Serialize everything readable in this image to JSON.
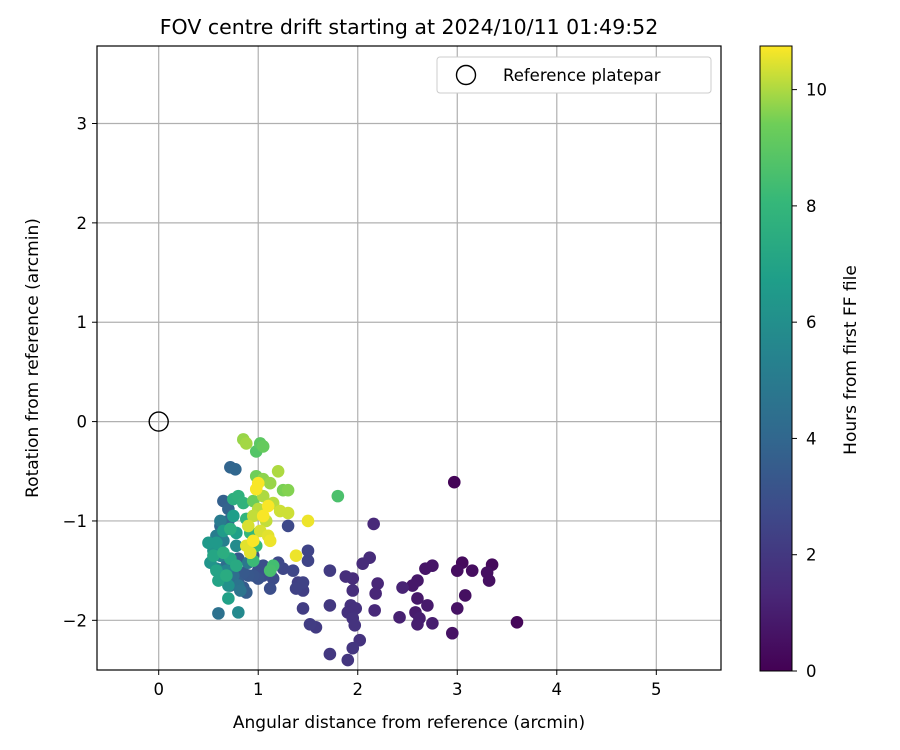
{
  "chart_data": {
    "type": "scatter",
    "title": "FOV centre drift starting at 2024/10/11 01:49:52",
    "xlabel": "Angular distance from reference (arcmin)",
    "ylabel": "Rotation from reference (arcmin)",
    "xlim": [
      -0.62,
      5.65
    ],
    "ylim": [
      -2.5,
      3.78
    ],
    "xticks": [
      0,
      1,
      2,
      3,
      4,
      5
    ],
    "yticks": [
      -2,
      -1,
      0,
      1,
      2,
      3
    ],
    "grid": true,
    "legend": {
      "placement": "top-right",
      "entries": [
        {
          "label": "Reference platepar",
          "marker": "open-circle"
        }
      ]
    },
    "reference_point": {
      "x": 0,
      "y": 0
    },
    "colorbar": {
      "label": "Hours from first FF file",
      "min": 0,
      "max": 10.75,
      "ticks": [
        0,
        2,
        4,
        6,
        8,
        10
      ],
      "colormap": "viridis"
    },
    "points": [
      [
        2.97,
        -0.61,
        0.1
      ],
      [
        3.6,
        -2.02,
        0.2
      ],
      [
        3.05,
        -1.42,
        0.3
      ],
      [
        3.35,
        -1.44,
        0.3
      ],
      [
        3.15,
        -1.5,
        0.4
      ],
      [
        3.0,
        -1.5,
        0.4
      ],
      [
        3.3,
        -1.52,
        0.5
      ],
      [
        3.32,
        -1.6,
        0.5
      ],
      [
        3.08,
        -1.75,
        0.5
      ],
      [
        3.0,
        -1.88,
        0.6
      ],
      [
        2.95,
        -2.13,
        0.6
      ],
      [
        2.75,
        -1.45,
        0.7
      ],
      [
        2.68,
        -1.48,
        0.7
      ],
      [
        2.6,
        -1.6,
        0.8
      ],
      [
        2.55,
        -1.65,
        0.8
      ],
      [
        2.6,
        -1.78,
        0.8
      ],
      [
        2.7,
        -1.85,
        0.9
      ],
      [
        2.58,
        -1.92,
        0.9
      ],
      [
        2.62,
        -1.98,
        1.0
      ],
      [
        2.6,
        -2.04,
        1.0
      ],
      [
        2.75,
        -2.03,
        1.0
      ],
      [
        2.42,
        -1.97,
        1.1
      ],
      [
        2.45,
        -1.67,
        1.2
      ],
      [
        2.2,
        -1.63,
        1.3
      ],
      [
        2.18,
        -1.73,
        1.3
      ],
      [
        2.17,
        -1.9,
        1.4
      ],
      [
        2.16,
        -1.03,
        1.4
      ],
      [
        2.12,
        -1.37,
        1.5
      ],
      [
        2.05,
        -1.43,
        1.5
      ],
      [
        1.95,
        -1.58,
        1.5
      ],
      [
        1.88,
        -1.56,
        1.6
      ],
      [
        1.95,
        -1.7,
        1.6
      ],
      [
        1.93,
        -1.85,
        1.7
      ],
      [
        1.98,
        -1.88,
        1.7
      ],
      [
        1.9,
        -1.92,
        1.7
      ],
      [
        1.95,
        -1.98,
        1.8
      ],
      [
        1.97,
        -2.05,
        1.8
      ],
      [
        2.02,
        -2.2,
        1.8
      ],
      [
        1.95,
        -2.28,
        1.9
      ],
      [
        1.9,
        -2.4,
        1.9
      ],
      [
        1.72,
        -2.34,
        2.0
      ],
      [
        1.72,
        -1.85,
        2.0
      ],
      [
        1.72,
        -1.5,
        2.1
      ],
      [
        1.58,
        -2.07,
        2.1
      ],
      [
        1.52,
        -2.04,
        2.2
      ],
      [
        1.45,
        -1.88,
        2.2
      ],
      [
        1.45,
        -1.7,
        2.3
      ],
      [
        1.4,
        -1.62,
        2.3
      ],
      [
        1.45,
        -1.62,
        2.4
      ],
      [
        1.38,
        -1.68,
        2.4
      ],
      [
        1.5,
        -1.4,
        2.5
      ],
      [
        1.5,
        -1.3,
        2.5
      ],
      [
        1.35,
        -1.5,
        2.6
      ],
      [
        1.25,
        -1.48,
        2.6
      ],
      [
        1.2,
        -1.42,
        2.7
      ],
      [
        1.3,
        -1.05,
        2.7
      ],
      [
        1.15,
        -1.58,
        2.8
      ],
      [
        1.12,
        -1.52,
        2.8
      ],
      [
        1.05,
        -1.55,
        2.9
      ],
      [
        1.12,
        -1.68,
        2.9
      ],
      [
        1.0,
        -1.5,
        3.0
      ],
      [
        1.05,
        -1.45,
        3.0
      ],
      [
        1.0,
        -1.58,
        3.1
      ],
      [
        0.95,
        -1.55,
        3.2
      ],
      [
        0.95,
        -1.35,
        3.3
      ],
      [
        0.9,
        -1.55,
        3.3
      ],
      [
        0.85,
        -1.52,
        3.4
      ],
      [
        0.8,
        -1.38,
        3.4
      ],
      [
        0.8,
        -1.62,
        3.5
      ],
      [
        0.85,
        -1.67,
        3.5
      ],
      [
        0.88,
        -1.72,
        3.6
      ],
      [
        0.65,
        -0.8,
        3.7
      ],
      [
        0.7,
        -0.88,
        3.8
      ],
      [
        0.72,
        -0.46,
        3.9
      ],
      [
        0.77,
        -0.48,
        4.0
      ],
      [
        0.7,
        -1.0,
        4.0
      ],
      [
        0.62,
        -1.05,
        4.1
      ],
      [
        0.6,
        -1.3,
        4.2
      ],
      [
        0.68,
        -1.45,
        4.3
      ],
      [
        0.75,
        -1.55,
        4.4
      ],
      [
        0.72,
        -1.65,
        4.4
      ],
      [
        0.6,
        -1.93,
        4.5
      ],
      [
        0.8,
        -1.65,
        4.6
      ],
      [
        0.82,
        -1.7,
        4.7
      ],
      [
        0.9,
        -1.42,
        4.8
      ],
      [
        0.62,
        -1.0,
        5.0
      ],
      [
        0.58,
        -1.15,
        5.1
      ],
      [
        0.65,
        -1.2,
        5.2
      ],
      [
        0.62,
        -1.35,
        5.3
      ],
      [
        0.58,
        -1.48,
        5.4
      ],
      [
        0.68,
        -1.5,
        5.5
      ],
      [
        0.72,
        -1.38,
        5.6
      ],
      [
        0.8,
        -1.92,
        5.7
      ],
      [
        0.78,
        -1.25,
        5.8
      ],
      [
        0.62,
        -1.55,
        6.0
      ],
      [
        0.7,
        -1.65,
        6.1
      ],
      [
        0.55,
        -1.3,
        6.2
      ],
      [
        0.52,
        -1.42,
        6.3
      ],
      [
        0.5,
        -1.22,
        6.5
      ],
      [
        0.58,
        -1.22,
        6.5
      ],
      [
        0.65,
        -1.1,
        6.6
      ],
      [
        0.75,
        -0.95,
        6.7
      ],
      [
        0.78,
        -1.12,
        6.8
      ],
      [
        0.7,
        -1.78,
        6.9
      ],
      [
        0.6,
        -1.6,
        7.0
      ],
      [
        0.58,
        -1.5,
        7.0
      ],
      [
        0.55,
        -1.35,
        7.1
      ],
      [
        0.72,
        -1.38,
        7.2
      ],
      [
        0.78,
        -1.45,
        7.3
      ],
      [
        0.68,
        -1.55,
        7.4
      ],
      [
        0.65,
        -1.32,
        7.5
      ],
      [
        0.72,
        -1.08,
        7.5
      ],
      [
        0.75,
        -0.78,
        7.6
      ],
      [
        0.8,
        -0.75,
        7.7
      ],
      [
        0.85,
        -0.82,
        7.8
      ],
      [
        0.88,
        -0.98,
        7.9
      ],
      [
        0.92,
        -1.12,
        8.0
      ],
      [
        0.98,
        -1.25,
        8.1
      ],
      [
        0.95,
        -1.4,
        8.2
      ],
      [
        1.15,
        -1.45,
        8.4
      ],
      [
        1.12,
        -1.5,
        8.5
      ],
      [
        1.8,
        -0.75,
        8.6
      ],
      [
        0.98,
        -0.3,
        8.8
      ],
      [
        1.02,
        -0.22,
        9.0
      ],
      [
        1.05,
        -0.25,
        9.2
      ],
      [
        0.95,
        -0.8,
        9.3
      ],
      [
        0.98,
        -0.55,
        9.4
      ],
      [
        1.25,
        -0.69,
        9.5
      ],
      [
        1.3,
        -0.69,
        9.6
      ],
      [
        1.05,
        -0.58,
        9.7
      ],
      [
        1.12,
        -0.62,
        9.8
      ],
      [
        0.85,
        -0.18,
        9.8
      ],
      [
        0.88,
        -0.22,
        9.9
      ],
      [
        1.2,
        -0.5,
        10.0
      ],
      [
        1.05,
        -0.75,
        10.0
      ],
      [
        1.15,
        -0.82,
        10.1
      ],
      [
        1.0,
        -0.88,
        10.1
      ],
      [
        0.95,
        -0.95,
        10.2
      ],
      [
        1.08,
        -1.0,
        10.2
      ],
      [
        1.22,
        -0.9,
        10.3
      ],
      [
        1.3,
        -0.92,
        10.3
      ],
      [
        0.9,
        -1.05,
        10.4
      ],
      [
        1.02,
        -1.1,
        10.4
      ],
      [
        1.1,
        -1.15,
        10.5
      ],
      [
        0.88,
        -1.25,
        10.5
      ],
      [
        0.92,
        -1.32,
        10.5
      ],
      [
        1.12,
        -1.2,
        10.6
      ],
      [
        1.5,
        -1.0,
        10.6
      ],
      [
        1.38,
        -1.35,
        10.6
      ],
      [
        1.0,
        -0.62,
        10.7
      ],
      [
        0.98,
        -0.68,
        10.7
      ],
      [
        1.05,
        -0.95,
        10.7
      ],
      [
        0.95,
        -1.2,
        10.7
      ],
      [
        1.1,
        -0.85,
        10.7
      ]
    ]
  }
}
